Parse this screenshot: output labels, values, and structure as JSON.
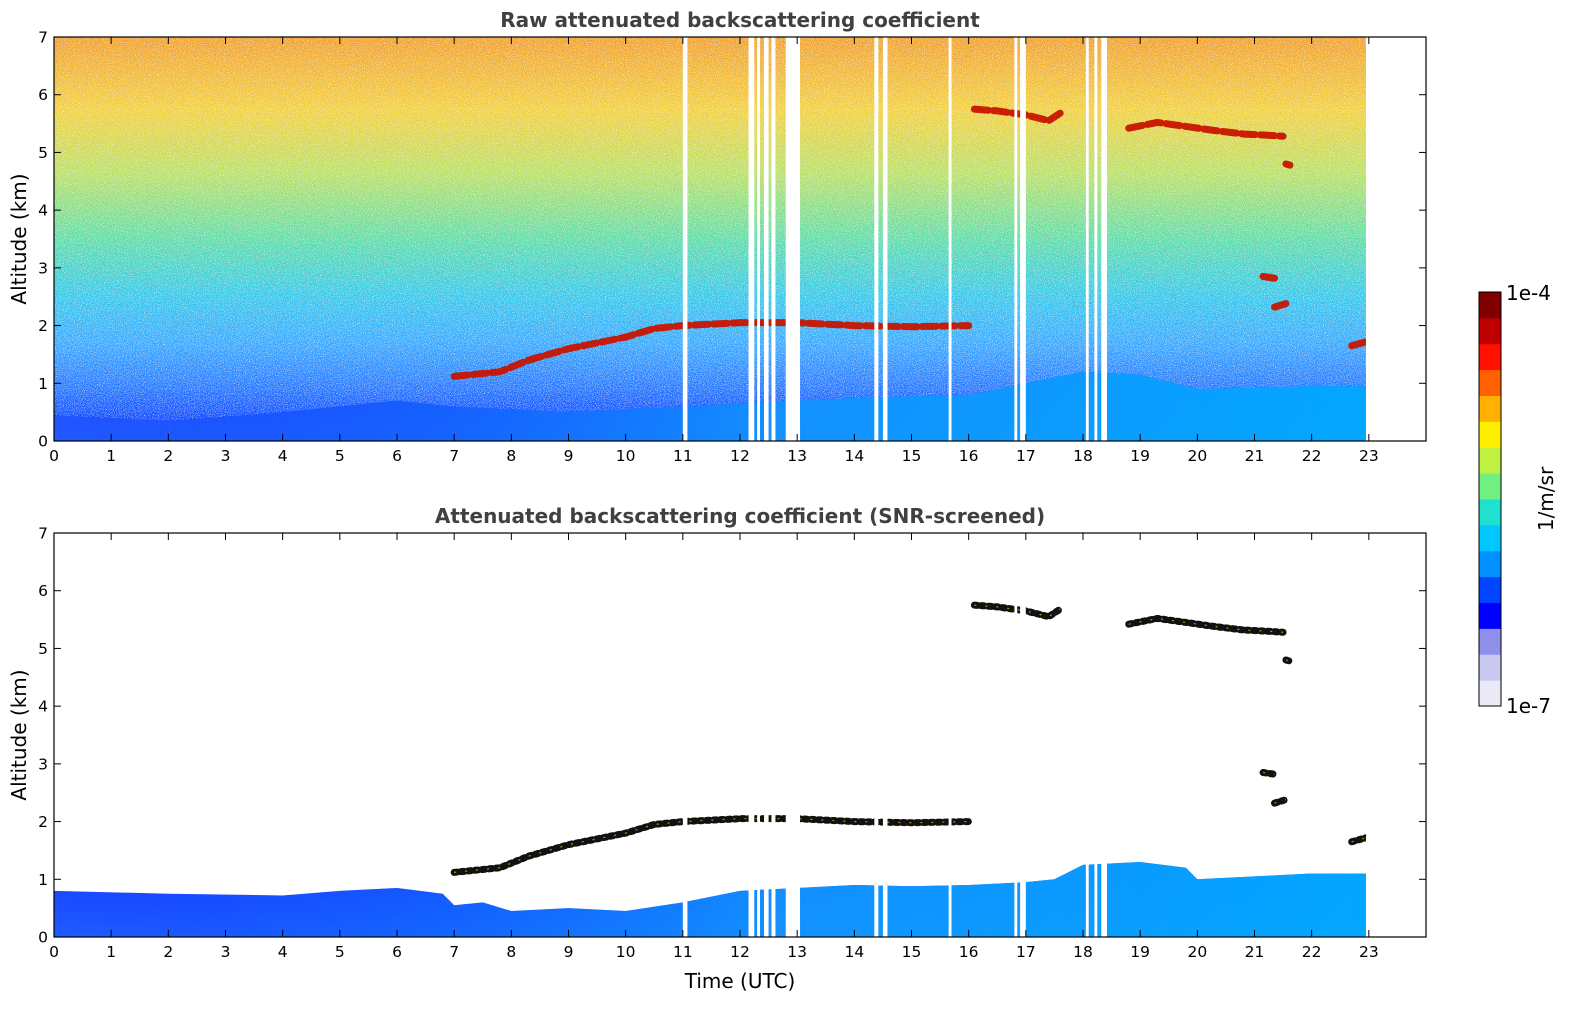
{
  "chart_data": [
    {
      "type": "heatmap",
      "title": "Raw attenuated backscattering coefficient",
      "ylabel": "Altitude (km)",
      "xlabel": "",
      "xlim": [
        0,
        24
      ],
      "ylim": [
        0,
        7
      ],
      "x_ticks": [
        0,
        1,
        2,
        3,
        4,
        5,
        6,
        7,
        8,
        9,
        10,
        11,
        12,
        13,
        14,
        15,
        16,
        17,
        18,
        19,
        20,
        21,
        22,
        23
      ],
      "y_ticks": [
        0,
        1,
        2,
        3,
        4,
        5,
        6,
        7
      ],
      "data_end_time": 22.95,
      "data_gaps": [
        [
          11.0,
          11.08
        ],
        [
          12.15,
          12.25
        ],
        [
          12.3,
          12.35
        ],
        [
          12.42,
          12.5
        ],
        [
          12.55,
          12.62
        ],
        [
          12.8,
          13.05
        ],
        [
          14.35,
          14.42
        ],
        [
          14.5,
          14.58
        ],
        [
          15.65,
          15.7
        ],
        [
          16.8,
          16.85
        ],
        [
          16.9,
          17.0
        ],
        [
          18.05,
          18.1
        ],
        [
          18.2,
          18.25
        ],
        [
          18.32,
          18.42
        ]
      ],
      "layers": [
        {
          "name": "boundary-layer",
          "value": "high",
          "points": [
            [
              0,
              0.45
            ],
            [
              2,
              0.35
            ],
            [
              4,
              0.5
            ],
            [
              6,
              0.7
            ],
            [
              7,
              0.6
            ],
            [
              8,
              0.55
            ],
            [
              9,
              0.5
            ],
            [
              10,
              0.55
            ],
            [
              11,
              0.6
            ],
            [
              12,
              0.65
            ],
            [
              14,
              0.75
            ],
            [
              16,
              0.8
            ],
            [
              18,
              1.2
            ],
            [
              19,
              1.15
            ],
            [
              20,
              0.9
            ],
            [
              22,
              0.95
            ],
            [
              22.95,
              0.95
            ]
          ]
        },
        {
          "name": "elevated-aerosol-layer",
          "value": "strong",
          "points": [
            [
              7,
              1.12
            ],
            [
              7.8,
              1.2
            ],
            [
              8.3,
              1.4
            ],
            [
              9,
              1.6
            ],
            [
              9.5,
              1.7
            ],
            [
              10,
              1.8
            ],
            [
              10.5,
              1.95
            ],
            [
              11,
              2.0
            ],
            [
              12,
              2.05
            ],
            [
              13,
              2.05
            ],
            [
              14,
              2.0
            ],
            [
              15,
              1.98
            ],
            [
              16,
              2.0
            ]
          ]
        },
        {
          "name": "cirrus-cloud-1",
          "value": "strong",
          "points": [
            [
              16.1,
              5.75
            ],
            [
              16.5,
              5.72
            ],
            [
              17,
              5.65
            ],
            [
              17.4,
              5.55
            ],
            [
              17.6,
              5.68
            ]
          ]
        },
        {
          "name": "cirrus-cloud-2",
          "value": "strong",
          "points": [
            [
              18.8,
              5.42
            ],
            [
              19.3,
              5.52
            ],
            [
              19.8,
              5.45
            ],
            [
              20.3,
              5.38
            ],
            [
              20.8,
              5.32
            ],
            [
              21.2,
              5.3
            ],
            [
              21.5,
              5.28
            ]
          ]
        },
        {
          "name": "cloud-fragment",
          "value": "strong",
          "points": [
            [
              21.15,
              2.85
            ],
            [
              21.35,
              2.82
            ]
          ]
        },
        {
          "name": "cloud-fragment",
          "value": "strong",
          "points": [
            [
              21.35,
              2.32
            ],
            [
              21.55,
              2.38
            ]
          ]
        },
        {
          "name": "cloud-fragment",
          "value": "strong",
          "points": [
            [
              21.55,
              4.8
            ],
            [
              21.62,
              4.78
            ]
          ]
        },
        {
          "name": "cloud-fragment",
          "value": "strong",
          "points": [
            [
              22.7,
              1.65
            ],
            [
              22.95,
              1.72
            ]
          ]
        }
      ]
    },
    {
      "type": "heatmap",
      "title": "Attenuated backscattering coefficient (SNR-screened)",
      "ylabel": "Altitude (km)",
      "xlabel": "Time (UTC)",
      "xlim": [
        0,
        24
      ],
      "ylim": [
        0,
        7
      ],
      "x_ticks": [
        0,
        1,
        2,
        3,
        4,
        5,
        6,
        7,
        8,
        9,
        10,
        11,
        12,
        13,
        14,
        15,
        16,
        17,
        18,
        19,
        20,
        21,
        22,
        23
      ],
      "y_ticks": [
        0,
        1,
        2,
        3,
        4,
        5,
        6,
        7
      ],
      "data_end_time": 22.95,
      "data_gaps": [
        [
          11.0,
          11.08
        ],
        [
          12.15,
          12.25
        ],
        [
          12.3,
          12.35
        ],
        [
          12.42,
          12.5
        ],
        [
          12.55,
          12.62
        ],
        [
          12.8,
          13.05
        ],
        [
          14.35,
          14.42
        ],
        [
          14.5,
          14.58
        ],
        [
          15.65,
          15.7
        ],
        [
          16.8,
          16.85
        ],
        [
          16.9,
          17.0
        ],
        [
          18.05,
          18.1
        ],
        [
          18.2,
          18.25
        ],
        [
          18.32,
          18.42
        ]
      ],
      "boundary_layer_top": [
        [
          0,
          0.8
        ],
        [
          2,
          0.75
        ],
        [
          4,
          0.72
        ],
        [
          5,
          0.8
        ],
        [
          6,
          0.85
        ],
        [
          6.8,
          0.75
        ],
        [
          7,
          0.55
        ],
        [
          7.5,
          0.6
        ],
        [
          8,
          0.45
        ],
        [
          9,
          0.5
        ],
        [
          10,
          0.45
        ],
        [
          11,
          0.6
        ],
        [
          12,
          0.8
        ],
        [
          13,
          0.85
        ],
        [
          14,
          0.9
        ],
        [
          15,
          0.88
        ],
        [
          16,
          0.9
        ],
        [
          17,
          0.95
        ],
        [
          17.5,
          1.0
        ],
        [
          18,
          1.25
        ],
        [
          19,
          1.3
        ],
        [
          19.8,
          1.2
        ],
        [
          20,
          1.0
        ],
        [
          21,
          1.05
        ],
        [
          22,
          1.1
        ],
        [
          22.95,
          1.1
        ]
      ],
      "layers": [
        {
          "name": "elevated-aerosol-layer",
          "value": "strong",
          "points": [
            [
              7,
              1.12
            ],
            [
              7.8,
              1.2
            ],
            [
              8.3,
              1.4
            ],
            [
              9,
              1.6
            ],
            [
              9.5,
              1.7
            ],
            [
              10,
              1.8
            ],
            [
              10.5,
              1.95
            ],
            [
              11,
              2.0
            ],
            [
              12,
              2.05
            ],
            [
              13,
              2.05
            ],
            [
              14,
              2.0
            ],
            [
              15,
              1.98
            ],
            [
              16,
              2.0
            ]
          ]
        },
        {
          "name": "cirrus-cloud-1",
          "value": "strong",
          "points": [
            [
              16.1,
              5.75
            ],
            [
              16.5,
              5.72
            ],
            [
              17,
              5.65
            ],
            [
              17.4,
              5.55
            ],
            [
              17.6,
              5.68
            ]
          ]
        },
        {
          "name": "cirrus-cloud-2",
          "value": "strong",
          "points": [
            [
              18.8,
              5.42
            ],
            [
              19.3,
              5.52
            ],
            [
              19.8,
              5.45
            ],
            [
              20.3,
              5.38
            ],
            [
              20.8,
              5.32
            ],
            [
              21.2,
              5.3
            ],
            [
              21.5,
              5.28
            ]
          ]
        },
        {
          "name": "cloud-fragment",
          "value": "strong",
          "points": [
            [
              21.15,
              2.85
            ],
            [
              21.35,
              2.82
            ]
          ]
        },
        {
          "name": "cloud-fragment",
          "value": "strong",
          "points": [
            [
              21.35,
              2.32
            ],
            [
              21.55,
              2.38
            ]
          ]
        },
        {
          "name": "cloud-fragment",
          "value": "strong",
          "points": [
            [
              21.55,
              4.8
            ],
            [
              21.62,
              4.78
            ]
          ]
        },
        {
          "name": "cloud-fragment",
          "value": "strong",
          "points": [
            [
              22.7,
              1.65
            ],
            [
              22.95,
              1.72
            ]
          ]
        }
      ]
    }
  ],
  "colorbar": {
    "label": "1/m/sr",
    "max_label": "1e-4",
    "min_label": "1e-7",
    "range": [
      "1e-7",
      "1e-4"
    ],
    "scale": "log",
    "colormap": "jet",
    "colors": [
      "#eaeaf7",
      "#c8c8f0",
      "#8f8fec",
      "#0000ff",
      "#0044ff",
      "#0090ff",
      "#00c8ff",
      "#20e0d0",
      "#70f080",
      "#c0f040",
      "#ffee00",
      "#ffb000",
      "#ff6000",
      "#ff1000",
      "#c00000",
      "#800000"
    ]
  }
}
